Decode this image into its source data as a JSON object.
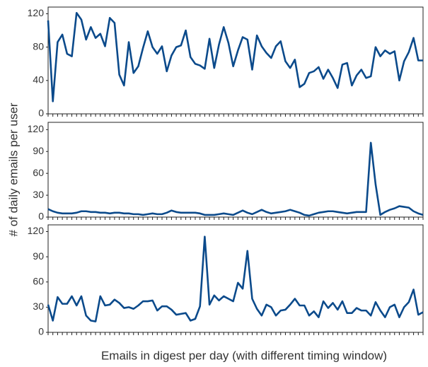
{
  "ylabel": "# of daily emails per user",
  "xlabel": "Emails in digest per day (with different timing window)",
  "chart_data": [
    {
      "type": "line",
      "color": "#0b4a8b",
      "ylim": [
        0,
        128
      ],
      "yticks": [
        0,
        40,
        80,
        120
      ],
      "categories": [
        null,
        null,
        null,
        null,
        null,
        null,
        null,
        null,
        null,
        null,
        null,
        null,
        null,
        null,
        null,
        null,
        null,
        null,
        null,
        null,
        null,
        null,
        null,
        null,
        null,
        null,
        null,
        null,
        null,
        null,
        null,
        null,
        null,
        null,
        null,
        null,
        null,
        null,
        null,
        null,
        null,
        null,
        null,
        null,
        null,
        null,
        null,
        null,
        null,
        null,
        null,
        null,
        null,
        null,
        null,
        null,
        null,
        null,
        null,
        null,
        null,
        null,
        null,
        null,
        null,
        null,
        null,
        null,
        null,
        null,
        null,
        null,
        null,
        null,
        null,
        null,
        null,
        null,
        null,
        null
      ],
      "values": [
        112,
        15,
        86,
        95,
        72,
        69,
        121,
        113,
        89,
        104,
        91,
        96,
        81,
        115,
        109,
        47,
        34,
        86,
        49,
        57,
        79,
        99,
        80,
        72,
        81,
        51,
        70,
        80,
        82,
        100,
        68,
        60,
        58,
        54,
        90,
        55,
        83,
        104,
        85,
        57,
        76,
        92,
        89,
        53,
        94,
        81,
        73,
        67,
        81,
        87,
        63,
        55,
        65,
        32,
        36,
        49,
        51,
        56,
        42,
        53,
        43,
        31,
        59,
        61,
        34,
        46,
        53,
        43,
        45,
        80,
        69,
        76,
        72,
        75,
        40,
        63,
        74,
        91,
        64,
        64
      ]
    },
    {
      "type": "line",
      "color": "#0b4a8b",
      "ylim": [
        0,
        130
      ],
      "yticks": [
        0,
        30,
        60,
        90,
        120
      ],
      "categories": [
        null,
        null,
        null,
        null,
        null,
        null,
        null,
        null,
        null,
        null,
        null,
        null,
        null,
        null,
        null,
        null,
        null,
        null,
        null,
        null,
        null,
        null,
        null,
        null,
        null,
        null,
        null,
        null,
        null,
        null,
        null,
        null,
        null,
        null,
        null,
        null,
        null,
        null,
        null,
        null,
        null,
        null,
        null,
        null,
        null,
        null,
        null,
        null,
        null,
        null,
        null,
        null,
        null,
        null,
        null,
        null,
        null,
        null,
        null,
        null,
        null,
        null,
        null,
        null,
        null,
        null,
        null,
        null,
        null,
        null,
        null,
        null,
        null,
        null,
        null,
        null,
        null,
        null,
        null,
        null
      ],
      "values": [
        11,
        8,
        6,
        5,
        5,
        5,
        6,
        8,
        8,
        7,
        7,
        6,
        6,
        5,
        6,
        6,
        5,
        5,
        4,
        4,
        3,
        4,
        5,
        4,
        4,
        6,
        9,
        7,
        6,
        6,
        6,
        6,
        5,
        3,
        3,
        3,
        4,
        5,
        4,
        3,
        6,
        9,
        6,
        4,
        7,
        10,
        7,
        5,
        6,
        7,
        8,
        10,
        8,
        6,
        3,
        2,
        4,
        6,
        7,
        8,
        8,
        7,
        6,
        5,
        6,
        7,
        7,
        7,
        102,
        45,
        3,
        7,
        10,
        12,
        15,
        14,
        13,
        8,
        5,
        3
      ]
    },
    {
      "type": "line",
      "color": "#0b4a8b",
      "ylim": [
        0,
        128
      ],
      "yticks": [
        0,
        30,
        60,
        90,
        120
      ],
      "categories": [
        null,
        null,
        null,
        null,
        null,
        null,
        null,
        null,
        null,
        null,
        null,
        null,
        null,
        null,
        null,
        null,
        null,
        null,
        null,
        null,
        null,
        null,
        null,
        null,
        null,
        null,
        null,
        null,
        null,
        null,
        null,
        null,
        null,
        null,
        null,
        null,
        null,
        null,
        null,
        null,
        null,
        null,
        null,
        null,
        null,
        null,
        null,
        null,
        null,
        null,
        null,
        null,
        null,
        null,
        null,
        null,
        null,
        null,
        null,
        null,
        null,
        null,
        null,
        null,
        null,
        null,
        null,
        null,
        null,
        null,
        null,
        null,
        null,
        null,
        null,
        null,
        null,
        null,
        null,
        null
      ],
      "values": [
        33,
        14,
        42,
        34,
        34,
        43,
        32,
        43,
        20,
        14,
        13,
        43,
        32,
        33,
        39,
        35,
        29,
        30,
        28,
        32,
        37,
        37,
        38,
        26,
        31,
        31,
        27,
        21,
        22,
        23,
        14,
        16,
        31,
        114,
        33,
        44,
        38,
        43,
        40,
        37,
        59,
        52,
        97,
        40,
        28,
        20,
        33,
        30,
        20,
        26,
        27,
        33,
        40,
        32,
        32,
        20,
        25,
        18,
        37,
        29,
        35,
        27,
        37,
        23,
        23,
        29,
        26,
        26,
        20,
        36,
        26,
        18,
        30,
        33,
        18,
        30,
        36,
        51,
        21,
        24
      ]
    }
  ]
}
